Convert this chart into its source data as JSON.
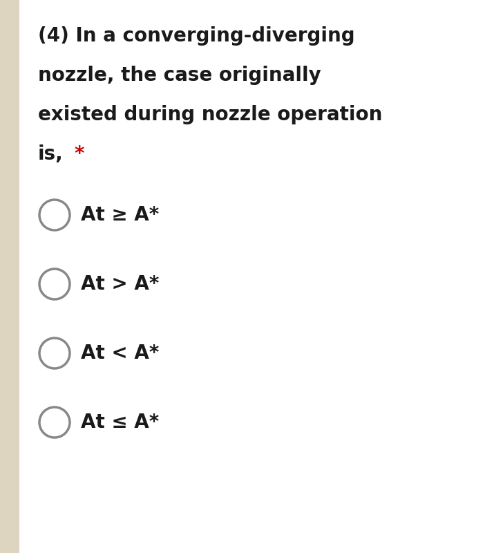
{
  "background_color": "#ffffff",
  "left_bar_color": "#ddd5c0",
  "question_lines": [
    "(4) In a converging-diverging",
    "nozzle, the case originally",
    "existed during nozzle operation",
    "is,"
  ],
  "asterisk": "*",
  "asterisk_color": "#cc0000",
  "options": [
    "At ≥ A*",
    "At > A*",
    "At < A*",
    "At ≤ A*"
  ],
  "font_color": "#1a1a1a",
  "circle_edge_color": "#888888",
  "circle_linewidth": 2.5,
  "question_fontsize": 20,
  "option_fontsize": 20
}
